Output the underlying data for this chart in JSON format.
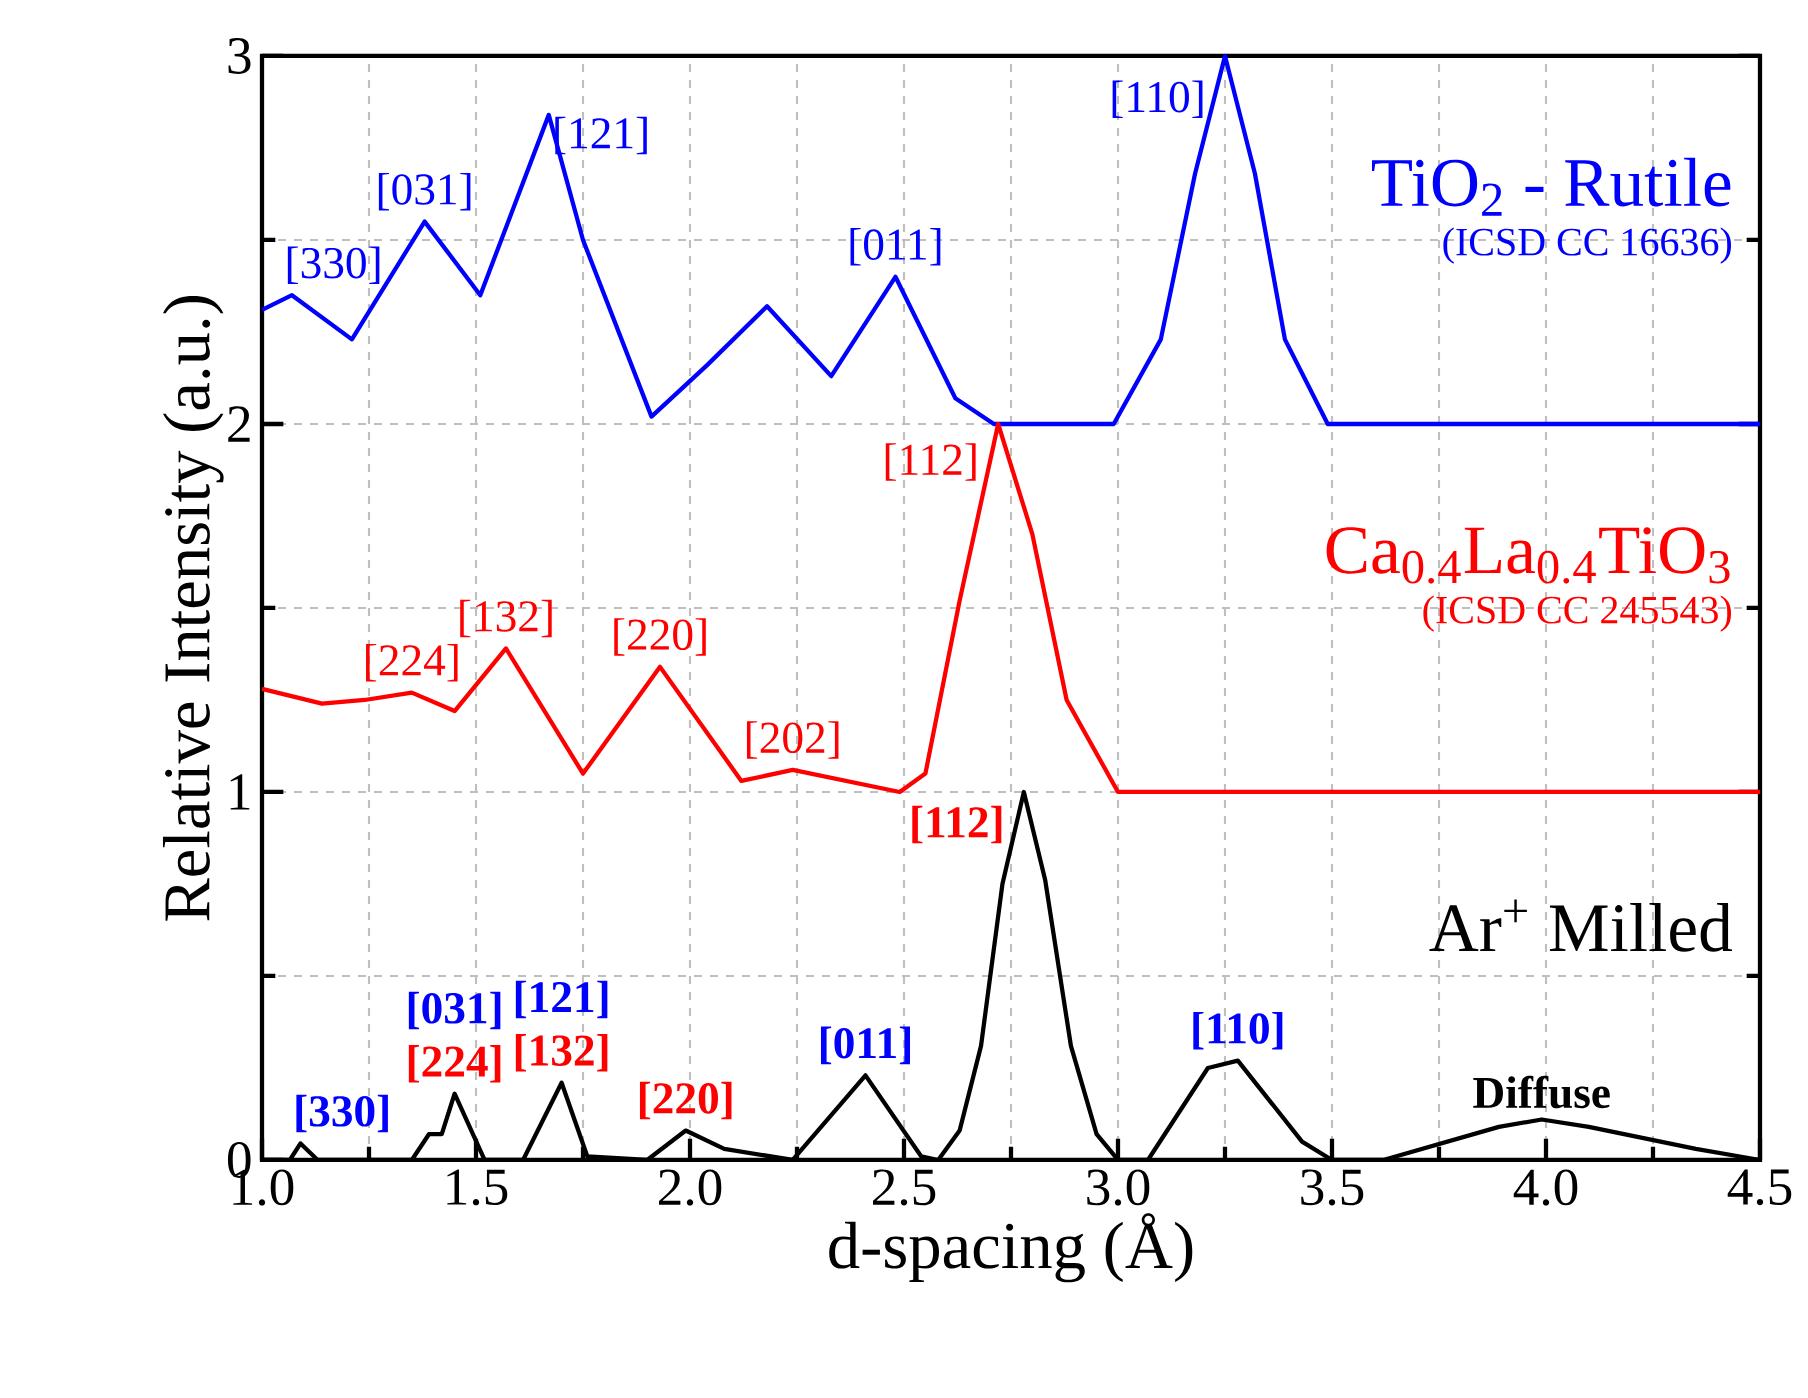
{
  "chart_data": {
    "type": "line",
    "xlabel": "d-spacing (Å)",
    "ylabel": "Relative Intensity (a.u.)",
    "xlim": [
      1.0,
      4.5
    ],
    "ylim": [
      0,
      3
    ],
    "xticks": [
      {
        "value": 1.0,
        "label": "1.0"
      },
      {
        "value": 1.5,
        "label": "1.5"
      },
      {
        "value": 2.0,
        "label": "2.0"
      },
      {
        "value": 2.5,
        "label": "2.5"
      },
      {
        "value": 3.0,
        "label": "3.0"
      },
      {
        "value": 3.5,
        "label": "3.5"
      },
      {
        "value": 4.0,
        "label": "4.0"
      },
      {
        "value": 4.5,
        "label": "4.5"
      }
    ],
    "yticks": [
      0,
      1,
      2,
      3
    ],
    "grid": true,
    "legend": false,
    "marker": "none",
    "line_style": "solid",
    "series": [
      {
        "name": "TiO$_{2}$ - Rutile",
        "color": "#0000ff",
        "x": [
          1.0,
          1.07,
          1.21,
          1.38,
          1.51,
          1.67,
          1.75,
          1.91,
          2.04,
          2.18,
          2.33,
          2.48,
          2.62,
          2.71,
          2.99,
          3.1,
          3.18,
          3.25,
          3.32,
          3.39,
          3.49,
          4.5
        ],
        "values": [
          2.31,
          2.35,
          2.23,
          2.55,
          2.35,
          2.84,
          2.5,
          2.02,
          2.16,
          2.32,
          2.13,
          2.4,
          2.07,
          2.0,
          2.0,
          2.23,
          2.68,
          3.0,
          2.68,
          2.23,
          2.0,
          2.0
        ]
      },
      {
        "name": "Ca$_{0.4}$La$_{0.4}$TiO$_{3}$",
        "color": "#ff0000",
        "x": [
          1.0,
          1.14,
          1.24,
          1.35,
          1.45,
          1.57,
          1.75,
          1.93,
          2.12,
          2.24,
          2.49,
          2.55,
          2.63,
          2.72,
          2.8,
          2.88,
          3.0,
          4.5
        ],
        "values": [
          1.28,
          1.24,
          1.25,
          1.27,
          1.22,
          1.39,
          1.05,
          1.34,
          1.03,
          1.06,
          1.0,
          1.05,
          1.52,
          2.0,
          1.7,
          1.25,
          1.0,
          1.0
        ]
      },
      {
        "name": "Ar$^{+}$ Milled",
        "color": "#000000",
        "x": [
          1.0,
          1.065,
          1.09,
          1.13,
          1.35,
          1.39,
          1.42,
          1.45,
          1.52,
          1.61,
          1.7,
          1.76,
          1.9,
          1.99,
          2.08,
          2.24,
          2.41,
          2.54,
          2.58,
          2.63,
          2.68,
          2.73,
          2.78,
          2.83,
          2.89,
          2.95,
          3.0,
          3.07,
          3.21,
          3.28,
          3.43,
          3.5,
          3.62,
          3.89,
          3.99,
          4.1,
          4.35,
          4.5
        ],
        "values": [
          0,
          0,
          0.045,
          0,
          0,
          0.07,
          0.07,
          0.18,
          0,
          0,
          0.21,
          0.01,
          0,
          0.08,
          0.03,
          0,
          0.23,
          0.01,
          0,
          0.08,
          0.31,
          0.75,
          1.0,
          0.76,
          0.31,
          0.07,
          0,
          0,
          0.25,
          0.27,
          0.05,
          0,
          0,
          0.09,
          0.11,
          0.09,
          0.03,
          0
        ]
      }
    ],
    "annotations": [
      {
        "text": "[330]",
        "x": 1.07,
        "y": 2.35
      },
      {
        "text": "[031]",
        "x": 1.38,
        "y": 2.55
      },
      {
        "text": "[121]",
        "x": 1.67,
        "y": 2.84
      },
      {
        "text": "[011]",
        "x": 2.48,
        "y": 2.4
      },
      {
        "text": "[110]",
        "x": 3.25,
        "y": 3.0
      },
      {
        "text": "[224]",
        "x": 1.35,
        "y": 1.27
      },
      {
        "text": "[132]",
        "x": 1.57,
        "y": 1.39
      },
      {
        "text": "[220]",
        "x": 1.93,
        "y": 1.34
      },
      {
        "text": "[202]",
        "x": 2.24,
        "y": 1.06
      },
      {
        "text": "[112]",
        "x": 2.72,
        "y": 2.0
      },
      {
        "text": "[330]",
        "x": 1.09,
        "y": 0.045
      },
      {
        "text": "[224]",
        "x": 1.45,
        "y": 0.18
      },
      {
        "text": "[031]",
        "x": 1.45,
        "y": 0.18
      },
      {
        "text": "[132]",
        "x": 1.7,
        "y": 0.21
      },
      {
        "text": "[121]",
        "x": 1.7,
        "y": 0.21
      },
      {
        "text": "[220]",
        "x": 1.99,
        "y": 0.08
      },
      {
        "text": "[011]",
        "x": 2.41,
        "y": 0.23
      },
      {
        "text": "[112]",
        "x": 2.78,
        "y": 1.0
      },
      {
        "text": "[110]",
        "x": 3.28,
        "y": 0.27
      },
      {
        "text": "Diffuse",
        "x": 3.99,
        "y": 0.11
      },
      "(ICSD CC 16636)",
      "(ICSD CC 245543)"
    ]
  }
}
